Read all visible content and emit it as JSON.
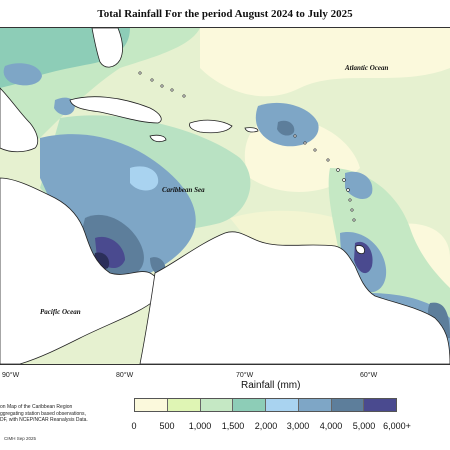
{
  "title": "Total Rainfall For the period August 2024 to July 2025",
  "map": {
    "labels": {
      "atlantic": "Atlantic Ocean",
      "caribbean": "Caribbean Sea",
      "pacific": "Pacific Ocean"
    },
    "longitude_ticks": [
      "90°W",
      "80°W",
      "70°W",
      "60°W"
    ]
  },
  "legend": {
    "title": "Rainfall (mm)",
    "labels": [
      "0",
      "500",
      "1,000",
      "1,500",
      "2,000",
      "3,000",
      "4,000",
      "5,000",
      "6,000+"
    ],
    "colors": [
      "#fbf9dc",
      "#dff5b4",
      "#c5e8c4",
      "#8dcdb7",
      "#a9d3f0",
      "#7ea6c6",
      "#5d7e9b",
      "#4a4a8f"
    ]
  },
  "caption": {
    "lines": [
      "on Map of the Caribbean Region",
      "ggregating station based observations,",
      "DF, with NCEP/NCAR Reanalysis Data."
    ],
    "credit": "CIMH Sep 2025"
  }
}
